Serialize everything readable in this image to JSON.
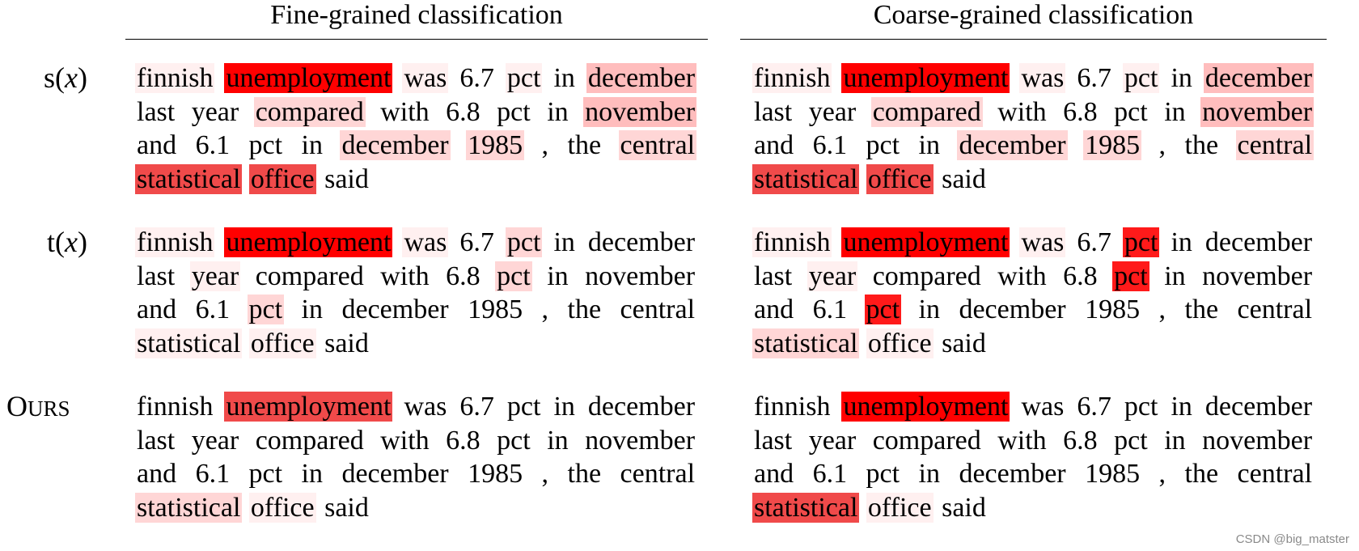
{
  "headers": {
    "fine": "Fine-grained classification",
    "coarse": "Coarse-grained classification"
  },
  "rows": [
    {
      "key": "s",
      "label_fn": "s",
      "label_open": "(",
      "label_var": "x",
      "label_close": ")"
    },
    {
      "key": "t",
      "label_fn": "t",
      "label_open": "(",
      "label_var": "x",
      "label_close": ")"
    },
    {
      "key": "ours",
      "label_big": "O",
      "label_small": "URS"
    }
  ],
  "text_cells": {
    "s_fine": [
      {
        "t": "finnish",
        "l": 1
      },
      {
        "t": "unemployment",
        "l": 6
      },
      {
        "t": "was",
        "l": 1
      },
      {
        "t": "6.7",
        "l": 0
      },
      {
        "t": "pct",
        "l": 1
      },
      {
        "t": "in",
        "l": 0
      },
      {
        "t": "december",
        "l": 3
      },
      {
        "t": "last",
        "l": 0
      },
      {
        "t": "year",
        "l": 0
      },
      {
        "t": "compared",
        "l": 2
      },
      {
        "t": "with",
        "l": 0
      },
      {
        "t": "6.8",
        "l": 0
      },
      {
        "t": "pct",
        "l": 0
      },
      {
        "t": "in",
        "l": 0
      },
      {
        "t": "november",
        "l": 3
      },
      {
        "t": "and",
        "l": 0
      },
      {
        "t": "6.1",
        "l": 0
      },
      {
        "t": "pct",
        "l": 0
      },
      {
        "t": "in",
        "l": 0
      },
      {
        "t": "december",
        "l": 2
      },
      {
        "t": "1985",
        "l": 2
      },
      {
        "t": ",",
        "l": 0
      },
      {
        "t": "the",
        "l": 0
      },
      {
        "t": "central",
        "l": 2
      },
      {
        "t": "statistical",
        "l": 4
      },
      {
        "t": "office",
        "l": 4
      },
      {
        "t": "said",
        "l": 0
      }
    ],
    "s_coarse": [
      {
        "t": "finnish",
        "l": 1
      },
      {
        "t": "unemployment",
        "l": 6
      },
      {
        "t": "was",
        "l": 1
      },
      {
        "t": "6.7",
        "l": 0
      },
      {
        "t": "pct",
        "l": 1
      },
      {
        "t": "in",
        "l": 0
      },
      {
        "t": "december",
        "l": 3
      },
      {
        "t": "last",
        "l": 0
      },
      {
        "t": "year",
        "l": 0
      },
      {
        "t": "compared",
        "l": 2
      },
      {
        "t": "with",
        "l": 0
      },
      {
        "t": "6.8",
        "l": 0
      },
      {
        "t": "pct",
        "l": 0
      },
      {
        "t": "in",
        "l": 0
      },
      {
        "t": "november",
        "l": 3
      },
      {
        "t": "and",
        "l": 0
      },
      {
        "t": "6.1",
        "l": 0
      },
      {
        "t": "pct",
        "l": 0
      },
      {
        "t": "in",
        "l": 0
      },
      {
        "t": "december",
        "l": 2
      },
      {
        "t": "1985",
        "l": 2
      },
      {
        "t": ",",
        "l": 0
      },
      {
        "t": "the",
        "l": 0
      },
      {
        "t": "central",
        "l": 2
      },
      {
        "t": "statistical",
        "l": 4
      },
      {
        "t": "office",
        "l": 4
      },
      {
        "t": "said",
        "l": 0
      }
    ],
    "t_fine": [
      {
        "t": "finnish",
        "l": 1
      },
      {
        "t": "unemployment",
        "l": 6
      },
      {
        "t": "was",
        "l": 1
      },
      {
        "t": "6.7",
        "l": 0
      },
      {
        "t": "pct",
        "l": 2
      },
      {
        "t": "in",
        "l": 0
      },
      {
        "t": "december",
        "l": 0
      },
      {
        "t": "last",
        "l": 0
      },
      {
        "t": "year",
        "l": 1
      },
      {
        "t": "compared",
        "l": 0
      },
      {
        "t": "with",
        "l": 0
      },
      {
        "t": "6.8",
        "l": 0
      },
      {
        "t": "pct",
        "l": 2
      },
      {
        "t": "in",
        "l": 0
      },
      {
        "t": "november",
        "l": 0
      },
      {
        "t": "and",
        "l": 0
      },
      {
        "t": "6.1",
        "l": 0
      },
      {
        "t": "pct",
        "l": 2
      },
      {
        "t": "in",
        "l": 0
      },
      {
        "t": "december",
        "l": 0
      },
      {
        "t": "1985",
        "l": 0
      },
      {
        "t": ",",
        "l": 0
      },
      {
        "t": "the",
        "l": 0
      },
      {
        "t": "central",
        "l": 0
      },
      {
        "t": "statistical",
        "l": 1
      },
      {
        "t": "office",
        "l": 1
      },
      {
        "t": "said",
        "l": 0
      }
    ],
    "t_coarse": [
      {
        "t": "finnish",
        "l": 1
      },
      {
        "t": "unemployment",
        "l": 6
      },
      {
        "t": "was",
        "l": 1
      },
      {
        "t": "6.7",
        "l": 0
      },
      {
        "t": "pct",
        "l": 5
      },
      {
        "t": "in",
        "l": 0
      },
      {
        "t": "december",
        "l": 0
      },
      {
        "t": "last",
        "l": 0
      },
      {
        "t": "year",
        "l": 1
      },
      {
        "t": "compared",
        "l": 0
      },
      {
        "t": "with",
        "l": 0
      },
      {
        "t": "6.8",
        "l": 0
      },
      {
        "t": "pct",
        "l": 5
      },
      {
        "t": "in",
        "l": 0
      },
      {
        "t": "november",
        "l": 0
      },
      {
        "t": "and",
        "l": 0
      },
      {
        "t": "6.1",
        "l": 0
      },
      {
        "t": "pct",
        "l": 5
      },
      {
        "t": "in",
        "l": 0
      },
      {
        "t": "december",
        "l": 0
      },
      {
        "t": "1985",
        "l": 0
      },
      {
        "t": ",",
        "l": 0
      },
      {
        "t": "the",
        "l": 0
      },
      {
        "t": "central",
        "l": 0
      },
      {
        "t": "statistical",
        "l": 2
      },
      {
        "t": "office",
        "l": 1
      },
      {
        "t": "said",
        "l": 0
      }
    ],
    "ours_fine": [
      {
        "t": "finnish",
        "l": 0
      },
      {
        "t": "unemployment",
        "l": 4
      },
      {
        "t": "was",
        "l": 0
      },
      {
        "t": "6.7",
        "l": 0
      },
      {
        "t": "pct",
        "l": 0
      },
      {
        "t": "in",
        "l": 0
      },
      {
        "t": "december",
        "l": 0
      },
      {
        "t": "last",
        "l": 0
      },
      {
        "t": "year",
        "l": 0
      },
      {
        "t": "compared",
        "l": 0
      },
      {
        "t": "with",
        "l": 0
      },
      {
        "t": "6.8",
        "l": 0
      },
      {
        "t": "pct",
        "l": 0
      },
      {
        "t": "in",
        "l": 0
      },
      {
        "t": "november",
        "l": 0
      },
      {
        "t": "and",
        "l": 0
      },
      {
        "t": "6.1",
        "l": 0
      },
      {
        "t": "pct",
        "l": 0
      },
      {
        "t": "in",
        "l": 0
      },
      {
        "t": "december",
        "l": 0
      },
      {
        "t": "1985",
        "l": 0
      },
      {
        "t": ",",
        "l": 0
      },
      {
        "t": "the",
        "l": 0
      },
      {
        "t": "central",
        "l": 0
      },
      {
        "t": "statistical",
        "l": 2
      },
      {
        "t": "office",
        "l": 1
      },
      {
        "t": "said",
        "l": 0
      }
    ],
    "ours_coarse": [
      {
        "t": "finnish",
        "l": 0
      },
      {
        "t": "unemployment",
        "l": 6
      },
      {
        "t": "was",
        "l": 0
      },
      {
        "t": "6.7",
        "l": 0
      },
      {
        "t": "pct",
        "l": 0
      },
      {
        "t": "in",
        "l": 0
      },
      {
        "t": "december",
        "l": 0
      },
      {
        "t": "last",
        "l": 0
      },
      {
        "t": "year",
        "l": 0
      },
      {
        "t": "compared",
        "l": 0
      },
      {
        "t": "with",
        "l": 0
      },
      {
        "t": "6.8",
        "l": 0
      },
      {
        "t": "pct",
        "l": 0
      },
      {
        "t": "in",
        "l": 0
      },
      {
        "t": "november",
        "l": 0
      },
      {
        "t": "and",
        "l": 0
      },
      {
        "t": "6.1",
        "l": 0
      },
      {
        "t": "pct",
        "l": 0
      },
      {
        "t": "in",
        "l": 0
      },
      {
        "t": "december",
        "l": 0
      },
      {
        "t": "1985",
        "l": 0
      },
      {
        "t": ",",
        "l": 0
      },
      {
        "t": "the",
        "l": 0
      },
      {
        "t": "central",
        "l": 0
      },
      {
        "t": "statistical",
        "l": 4
      },
      {
        "t": "office",
        "l": 1
      },
      {
        "t": "said",
        "l": 0
      }
    ]
  },
  "watermark": "CSDN @big_matster"
}
